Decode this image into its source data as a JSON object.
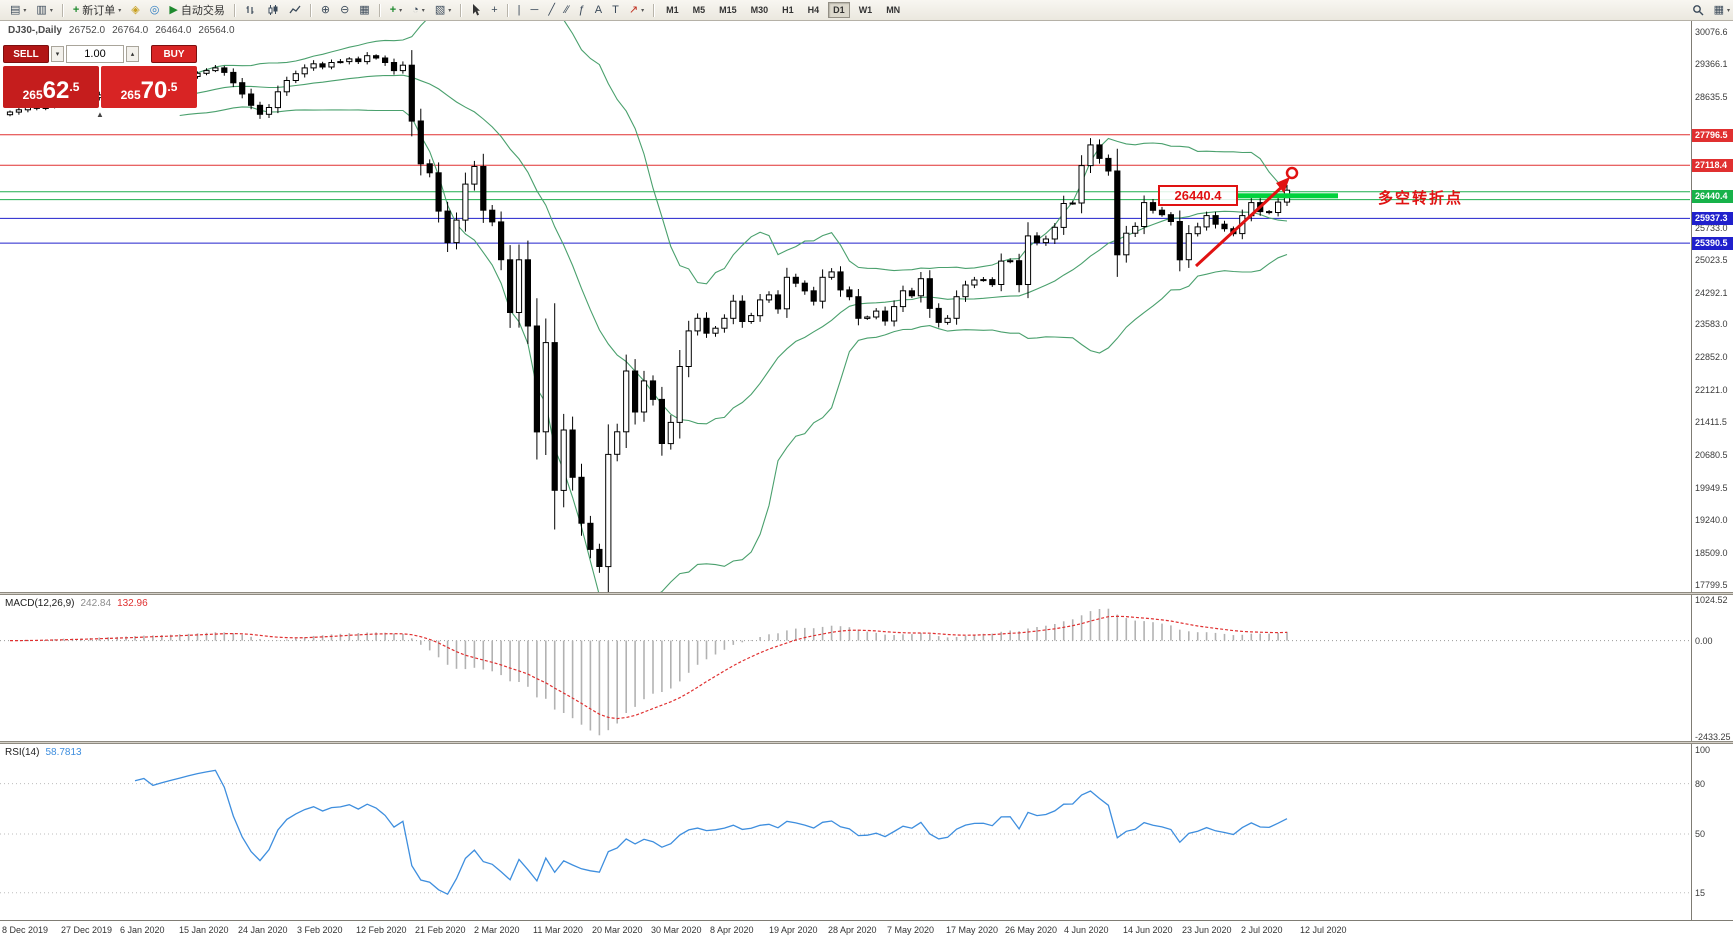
{
  "toolbar": {
    "new_order_label": "新订单",
    "auto_trading_label": "自动交易",
    "timeframes": [
      "M1",
      "M5",
      "M15",
      "M30",
      "H1",
      "H4",
      "D1",
      "W1",
      "MN"
    ],
    "active_timeframe": "D1",
    "icons": {
      "new_chart": "▤",
      "profiles": "▥",
      "new_order": "+",
      "quick_trade": "◈",
      "refresh": "◎",
      "auto_trading": "▶",
      "zoom_in": "⊕",
      "zoom_out": "⊖",
      "tile_windows": "▦",
      "indicators": "+",
      "periods": "◔",
      "templates": "▧",
      "crosshair": "+",
      "vertical_line": "|",
      "horizontal_line": "─",
      "trendline": "╱",
      "channel": "∕∕",
      "fibonacci": "ƒ",
      "text": "A",
      "text_label": "T",
      "arrows_tool": "↗",
      "layout": "▦",
      "caret": "▾"
    }
  },
  "chart_header": {
    "symbol_period": "DJ30-,Daily",
    "open": "26752.0",
    "high": "26764.0",
    "low": "26464.0",
    "close": "26564.0"
  },
  "trade_panel": {
    "sell_label": "SELL",
    "buy_label": "BUY",
    "volume": "1.00",
    "sell_price": {
      "prefix": "265",
      "big": "62",
      "suffix": ".5"
    },
    "buy_price": {
      "prefix": "265",
      "big": "70",
      "suffix": ".5"
    }
  },
  "annotation": {
    "level_label": "26440.4",
    "text": "多空转折点"
  },
  "macd_panel": {
    "title": "MACD(12,26,9)",
    "value": "242.84",
    "signal": "132.96",
    "axis_values": [
      1024.52,
      0.0,
      -2433.25
    ]
  },
  "rsi_panel": {
    "title": "RSI(14)",
    "value": "58.7813",
    "axis_values": [
      100,
      80,
      50,
      15
    ]
  },
  "chart_data": {
    "type": "candlestick",
    "symbol": "DJ30-",
    "timeframe": "Daily",
    "y_axis": {
      "max": 30076.6,
      "min": 17799.5,
      "grid_labels": [
        30076.6,
        29366.1,
        28635.5,
        25733.0,
        25023.5,
        24292.1,
        23583.0,
        22852.0,
        22121.0,
        21411.5,
        20680.5,
        19949.5,
        19240.0,
        18509.0,
        17799.5
      ]
    },
    "closes": [
      28300,
      28350,
      28420,
      28380,
      28450,
      28520,
      28550,
      28480,
      28540,
      28620,
      28680,
      28640,
      28700,
      28760,
      28820,
      28880,
      28840,
      28900,
      28960,
      29020,
      29090,
      29160,
      29220,
      29280,
      29180,
      28950,
      28700,
      28450,
      28250,
      28400,
      28750,
      29000,
      29150,
      29280,
      29370,
      29300,
      29400,
      29420,
      29480,
      29420,
      29550,
      29500,
      29400,
      29220,
      29340,
      28100,
      27150,
      26950,
      26100,
      25400,
      25900,
      26700,
      27090,
      26120,
      25860,
      25020,
      23850,
      25020,
      23550,
      21200,
      23180,
      19900,
      21240,
      20190,
      19170,
      18590,
      18210,
      20700,
      21200,
      22550,
      21640,
      22330,
      21920,
      20940,
      21410,
      22650,
      23440,
      23720,
      23390,
      23500,
      23720,
      24100,
      23650,
      23780,
      24130,
      24240,
      23930,
      24630,
      24500,
      24330,
      24100,
      24630,
      24750,
      24350,
      24200,
      23720,
      23750,
      23880,
      23660,
      23980,
      24330,
      24220,
      24600,
      23940,
      23630,
      23720,
      24200,
      24460,
      24570,
      24580,
      24470,
      24990,
      25000,
      24470,
      25550,
      25400,
      25480,
      25740,
      26270,
      26280,
      27110,
      27570,
      27270,
      26990,
      25130,
      25610,
      25760,
      26290,
      26120,
      26020,
      25870,
      25020,
      25600,
      25750,
      26000,
      25810,
      25710,
      25600,
      26000,
      26290,
      26090,
      26070,
      26300,
      26564
    ],
    "levels": [
      {
        "price": 27796.5,
        "color": "#e03030"
      },
      {
        "price": 27118.4,
        "color": "#e03030"
      },
      {
        "price": 26530.0,
        "color": "#1fae4e"
      },
      {
        "price": 26355.0,
        "color": "#1fae4e"
      },
      {
        "price": 25937.3,
        "color": "#2020cc"
      },
      {
        "price": 25390.5,
        "color": "#2020cc"
      }
    ],
    "badges": [
      {
        "label": "27796.5",
        "price": 27796.5,
        "bg": "#e03030"
      },
      {
        "label": "27118.4",
        "price": 27118.4,
        "bg": "#e03030"
      },
      {
        "label": "26440.4",
        "price": 26440.4,
        "bg": "#17b24a"
      },
      {
        "label": "25937.3",
        "price": 25937.3,
        "bg": "#2020cc"
      },
      {
        "label": "25390.5",
        "price": 25390.5,
        "bg": "#2020cc"
      }
    ],
    "thick_support": {
      "price": 26440.4
    },
    "indicators": {
      "bollinger": {
        "period": 20,
        "deviation": 2,
        "color": "#4aa06d"
      },
      "macd": {
        "fast": 12,
        "slow": 26,
        "signal": 9,
        "range": [
          -2433.25,
          1024.52
        ]
      },
      "rsi": {
        "period": 14,
        "levels": [
          80,
          50,
          15
        ]
      }
    },
    "dates": [
      "8 Dec 2019",
      "27 Dec 2019",
      "6 Jan 2020",
      "15 Jan 2020",
      "24 Jan 2020",
      "3 Feb 2020",
      "12 Feb 2020",
      "21 Feb 2020",
      "2 Mar 2020",
      "11 Mar 2020",
      "20 Mar 2020",
      "30 Mar 2020",
      "8 Apr 2020",
      "19 Apr 2020",
      "28 Apr 2020",
      "7 May 2020",
      "17 May 2020",
      "26 May 2020",
      "4 Jun 2020",
      "14 Jun 2020",
      "23 Jun 2020",
      "2 Jul 2020",
      "12 Jul 2020"
    ]
  }
}
